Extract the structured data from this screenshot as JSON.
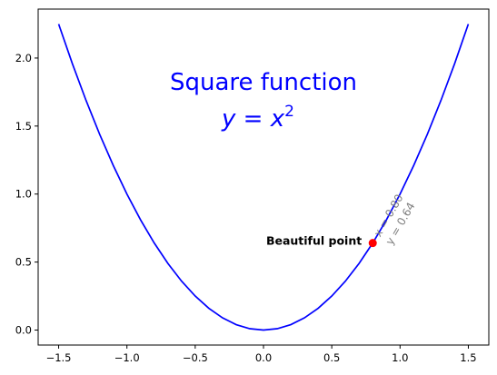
{
  "chart_data": {
    "type": "line",
    "x": [
      -1.5,
      -1.4,
      -1.3,
      -1.2,
      -1.1,
      -1.0,
      -0.9,
      -0.8,
      -0.7,
      -0.6,
      -0.5,
      -0.4,
      -0.3,
      -0.2,
      -0.1,
      0.0,
      0.1,
      0.2,
      0.3,
      0.4,
      0.5,
      0.6,
      0.7,
      0.8,
      0.9,
      1.0,
      1.1,
      1.2,
      1.3,
      1.4,
      1.5
    ],
    "series": [
      {
        "values": [
          2.25,
          1.96,
          1.69,
          1.44,
          1.21,
          1.0,
          0.81,
          0.64,
          0.49,
          0.36,
          0.25,
          0.16,
          0.09,
          0.04,
          0.01,
          0.0,
          0.01,
          0.04,
          0.09,
          0.16,
          0.25,
          0.36,
          0.49,
          0.64,
          0.81,
          1.0,
          1.21,
          1.44,
          1.69,
          1.96,
          2.25
        ],
        "color": "#0000ff"
      }
    ],
    "xlim": [
      -1.65,
      1.65
    ],
    "ylim": [
      -0.11,
      2.36
    ],
    "xticks": [
      -1.5,
      -1.0,
      -0.5,
      0.0,
      0.5,
      1.0,
      1.5
    ],
    "xtick_labels": [
      "−1.5",
      "−1.0",
      "−0.5",
      "0.0",
      "0.5",
      "1.0",
      "1.5"
    ],
    "yticks": [
      0.0,
      0.5,
      1.0,
      1.5,
      2.0
    ],
    "ytick_labels": [
      "0.0",
      "0.5",
      "1.0",
      "1.5",
      "2.0"
    ],
    "grid": false,
    "annotations": {
      "title": "Square function",
      "formula": {
        "base": "y = x",
        "exponent": "2"
      },
      "title_color": "#0000ff",
      "highlight_point": {
        "x": 0.8,
        "y": 0.64,
        "color": "#ff0000",
        "label": "Beautiful point",
        "coord_lines": [
          "x = 0.80",
          "y = 0.64"
        ],
        "coord_color": "#808080"
      }
    }
  }
}
